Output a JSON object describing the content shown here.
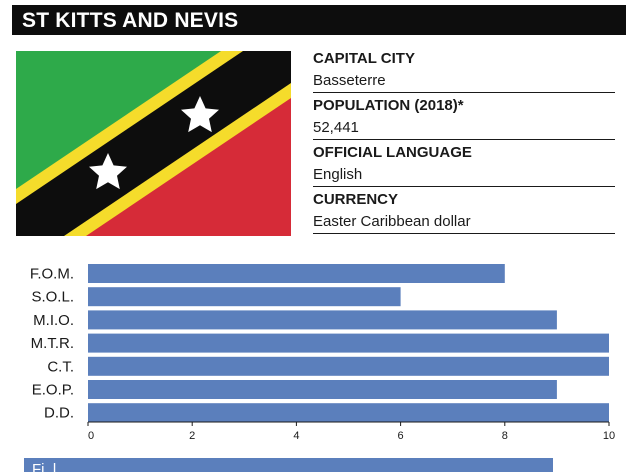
{
  "header": {
    "title": "ST KITTS AND NEVIS"
  },
  "flag": {
    "colors": {
      "green": "#2eaa4a",
      "red": "#d62b38",
      "yellow": "#f5dc2b",
      "black": "#0d0d0d",
      "star": "#ffffff"
    }
  },
  "info": {
    "capital_label": "CAPITAL CITY",
    "capital_value": "Basseterre",
    "population_label": "POPULATION (2018)*",
    "population_value": "52,441",
    "language_label": "OFFICIAL LANGUAGE",
    "language_value": "English",
    "currency_label": "CURRENCY",
    "currency_value": "Easter Caribbean dollar"
  },
  "chart_data": {
    "type": "bar",
    "orientation": "horizontal",
    "categories": [
      "F.O.M.",
      "S.O.L.",
      "M.I.O.",
      "M.T.R.",
      "C.T.",
      "E.O.P.",
      "D.D."
    ],
    "values": [
      8,
      6,
      9,
      10,
      10,
      9,
      10
    ],
    "xlim": [
      0,
      10
    ],
    "xticks": [
      0,
      2,
      4,
      6,
      8,
      10
    ],
    "bar_color": "#5b7fbc",
    "title": "",
    "xlabel": "",
    "ylabel": ""
  },
  "footer": {
    "partial_text": "Fi..l"
  }
}
